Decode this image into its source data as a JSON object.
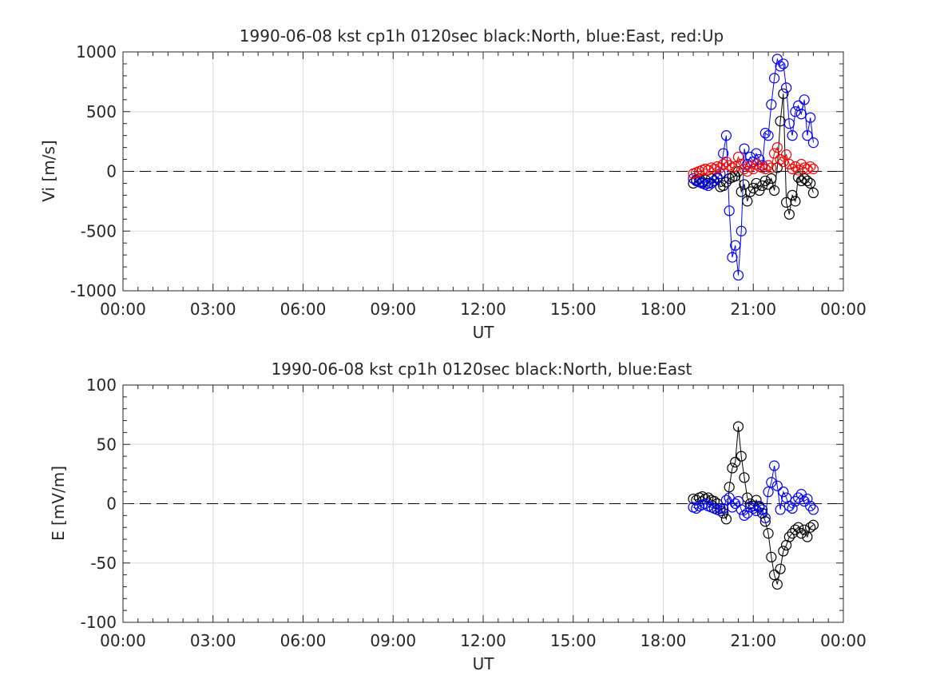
{
  "chart_data": [
    {
      "type": "line",
      "title": "1990-06-08 kst cp1h 0120sec black:North, blue:East, red:Up",
      "xlabel": "UT",
      "ylabel": "Vi [m/s]",
      "xlim": [
        "00:00",
        "24:00"
      ],
      "ylim": [
        -1000,
        1000
      ],
      "x_tick_labels": [
        "00:00",
        "03:00",
        "06:00",
        "09:00",
        "12:00",
        "15:00",
        "18:00",
        "21:00",
        "00:00"
      ],
      "y_tick_labels": [
        "-1000",
        "-500",
        "0",
        "500",
        "1000"
      ],
      "grid": true,
      "zero_line": "dashed",
      "marker": "circle",
      "series": [
        {
          "color": "#000000",
          "x": [
            19.0,
            19.1,
            19.2,
            19.3,
            19.4,
            19.5,
            19.6,
            19.7,
            19.8,
            19.9,
            20.0,
            20.1,
            20.2,
            20.3,
            20.4,
            20.5,
            20.6,
            20.7,
            20.8,
            20.9,
            21.0,
            21.1,
            21.2,
            21.3,
            21.4,
            21.5,
            21.6,
            21.7,
            21.8,
            21.9,
            22.0,
            22.1,
            22.2,
            22.3,
            22.4,
            22.5,
            22.6,
            22.7,
            22.8,
            22.9,
            23.0
          ],
          "y": [
            -100,
            -80,
            -60,
            -90,
            -70,
            -100,
            -60,
            -80,
            -50,
            -130,
            -120,
            -90,
            -60,
            -50,
            -40,
            0,
            -170,
            -110,
            -250,
            -170,
            -140,
            -100,
            -160,
            -120,
            -80,
            -110,
            -60,
            -160,
            30,
            420,
            650,
            -260,
            -360,
            -200,
            -250,
            -50,
            -80,
            -60,
            -80,
            -100,
            -180
          ]
        },
        {
          "color": "#0000ff",
          "x": [
            19.0,
            19.1,
            19.2,
            19.3,
            19.4,
            19.5,
            19.6,
            19.7,
            19.8,
            19.9,
            20.0,
            20.1,
            20.2,
            20.3,
            20.4,
            20.5,
            20.6,
            20.7,
            20.8,
            20.9,
            21.0,
            21.1,
            21.2,
            21.3,
            21.4,
            21.5,
            21.6,
            21.7,
            21.8,
            21.9,
            22.0,
            22.1,
            22.2,
            22.3,
            22.4,
            22.5,
            22.6,
            22.7,
            22.8,
            22.9,
            23.0
          ],
          "y": [
            -60,
            -70,
            -90,
            -100,
            -110,
            -120,
            -100,
            -80,
            -60,
            -20,
            150,
            300,
            -330,
            -720,
            -620,
            -870,
            -500,
            190,
            60,
            120,
            80,
            150,
            100,
            50,
            320,
            300,
            560,
            780,
            940,
            880,
            900,
            700,
            400,
            300,
            500,
            550,
            480,
            600,
            300,
            450,
            240
          ]
        },
        {
          "color": "#ff0000",
          "x": [
            19.0,
            19.1,
            19.2,
            19.3,
            19.4,
            19.5,
            19.6,
            19.7,
            19.8,
            19.9,
            20.0,
            20.1,
            20.2,
            20.3,
            20.4,
            20.5,
            20.6,
            20.7,
            20.8,
            20.9,
            21.0,
            21.1,
            21.2,
            21.3,
            21.4,
            21.5,
            21.6,
            21.7,
            21.8,
            21.9,
            22.0,
            22.1,
            22.2,
            22.3,
            22.4,
            22.5,
            22.6,
            22.7,
            22.8,
            22.9,
            23.0
          ],
          "y": [
            -20,
            -10,
            0,
            10,
            20,
            10,
            30,
            20,
            40,
            30,
            60,
            80,
            50,
            30,
            40,
            120,
            60,
            20,
            0,
            40,
            20,
            60,
            40,
            30,
            20,
            50,
            30,
            150,
            200,
            100,
            80,
            140,
            60,
            20,
            40,
            10,
            60,
            30,
            20,
            40,
            20
          ]
        }
      ]
    },
    {
      "type": "line",
      "title": "1990-06-08 kst cp1h 0120sec black:North, blue:East",
      "xlabel": "UT",
      "ylabel": "E [mV/m]",
      "xlim": [
        "00:00",
        "24:00"
      ],
      "ylim": [
        -100,
        100
      ],
      "x_tick_labels": [
        "00:00",
        "03:00",
        "06:00",
        "09:00",
        "12:00",
        "15:00",
        "18:00",
        "21:00",
        "00:00"
      ],
      "y_tick_labels": [
        "-100",
        "-50",
        "0",
        "50",
        "100"
      ],
      "grid": true,
      "zero_line": "dashed",
      "marker": "circle",
      "series": [
        {
          "color": "#000000",
          "x": [
            19.0,
            19.1,
            19.2,
            19.3,
            19.4,
            19.5,
            19.6,
            19.7,
            19.8,
            19.9,
            20.0,
            20.1,
            20.2,
            20.3,
            20.4,
            20.5,
            20.6,
            20.7,
            20.8,
            20.9,
            21.0,
            21.1,
            21.2,
            21.3,
            21.4,
            21.5,
            21.6,
            21.7,
            21.8,
            21.9,
            22.0,
            22.1,
            22.2,
            22.3,
            22.4,
            22.5,
            22.6,
            22.7,
            22.8,
            22.9,
            23.0
          ],
          "y": [
            4,
            3,
            5,
            6,
            4,
            5,
            3,
            2,
            0,
            -4,
            -8,
            -13,
            14,
            30,
            35,
            65,
            40,
            22,
            5,
            0,
            -2,
            3,
            -3,
            -8,
            -15,
            -25,
            -45,
            -60,
            -68,
            -55,
            -40,
            -35,
            -28,
            -25,
            -22,
            -20,
            -25,
            -22,
            -28,
            -20,
            -18
          ]
        },
        {
          "color": "#0000ff",
          "x": [
            19.0,
            19.1,
            19.2,
            19.3,
            19.4,
            19.5,
            19.6,
            19.7,
            19.8,
            19.9,
            20.0,
            20.1,
            20.2,
            20.3,
            20.4,
            20.5,
            20.6,
            20.7,
            20.8,
            20.9,
            21.0,
            21.1,
            21.2,
            21.3,
            21.4,
            21.5,
            21.6,
            21.7,
            21.8,
            21.9,
            22.0,
            22.1,
            22.2,
            22.3,
            22.4,
            22.5,
            22.6,
            22.7,
            22.8,
            22.9,
            23.0
          ],
          "y": [
            -3,
            -4,
            -2,
            -1,
            0,
            -2,
            -3,
            -4,
            -5,
            -6,
            -4,
            3,
            5,
            -3,
            0,
            2,
            -5,
            -10,
            -8,
            -3,
            -4,
            -6,
            -2,
            -5,
            -12,
            10,
            18,
            32,
            15,
            -5,
            10,
            5,
            -2,
            -4,
            2,
            5,
            8,
            2,
            4,
            -2,
            -5
          ]
        }
      ]
    }
  ]
}
